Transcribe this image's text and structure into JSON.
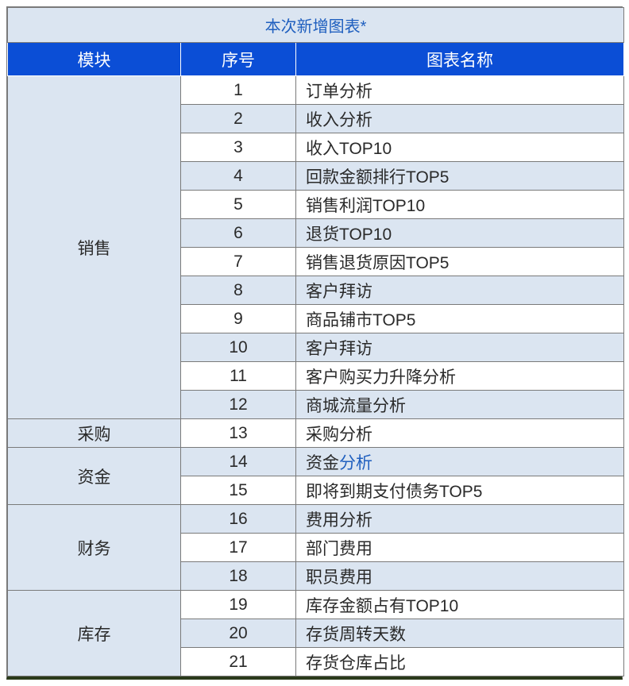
{
  "title": "本次新增图表*",
  "headers": {
    "module": "模块",
    "index": "序号",
    "name": "图表名称"
  },
  "col_widths": {
    "module": 218,
    "index": 145,
    "name": 413
  },
  "colors": {
    "header_bg": "#0b4ed6",
    "header_fg": "#ffffff",
    "alt_bg": "#dbe5f1",
    "border": "#7a7a7a",
    "title_fg": "#1f5fbf",
    "text": "#2a2a2a",
    "bottom_border": "#2a3a1a"
  },
  "modules": [
    {
      "name": "销售",
      "rows": [
        {
          "idx": 1,
          "label": "订单分析",
          "alt": false
        },
        {
          "idx": 2,
          "label": "收入分析",
          "alt": true
        },
        {
          "idx": 3,
          "label": "收入TOP10",
          "alt": false
        },
        {
          "idx": 4,
          "label": "回款金额排行TOP5",
          "alt": true
        },
        {
          "idx": 5,
          "label": "销售利润TOP10",
          "alt": false
        },
        {
          "idx": 6,
          "label": "退货TOP10",
          "alt": true
        },
        {
          "idx": 7,
          "label": "销售退货原因TOP5",
          "alt": false
        },
        {
          "idx": 8,
          "label": "客户拜访",
          "alt": true
        },
        {
          "idx": 9,
          "label": "商品铺市TOP5",
          "alt": false
        },
        {
          "idx": 10,
          "label": "客户拜访",
          "alt": true
        },
        {
          "idx": 11,
          "label": "客户购买力升降分析",
          "alt": false
        },
        {
          "idx": 12,
          "label": "商城流量分析",
          "alt": true
        }
      ]
    },
    {
      "name": "采购",
      "rows": [
        {
          "idx": 13,
          "label": "采购分析",
          "alt": false
        }
      ]
    },
    {
      "name": "资金",
      "rows": [
        {
          "idx": 14,
          "label_parts": [
            {
              "text": "资金",
              "color": "black"
            },
            {
              "text": "分析",
              "color": "blue"
            }
          ],
          "alt": true
        },
        {
          "idx": 15,
          "label": "即将到期支付债务TOP5",
          "alt": false
        }
      ]
    },
    {
      "name": "财务",
      "rows": [
        {
          "idx": 16,
          "label": "费用分析",
          "alt": true
        },
        {
          "idx": 17,
          "label": "部门费用",
          "alt": false
        },
        {
          "idx": 18,
          "label": "职员费用",
          "alt": true
        }
      ]
    },
    {
      "name": "库存",
      "rows": [
        {
          "idx": 19,
          "label": "库存金额占有TOP10",
          "alt": false
        },
        {
          "idx": 20,
          "label": "存货周转天数",
          "alt": true
        },
        {
          "idx": 21,
          "label": "存货仓库占比",
          "alt": false
        }
      ]
    }
  ]
}
